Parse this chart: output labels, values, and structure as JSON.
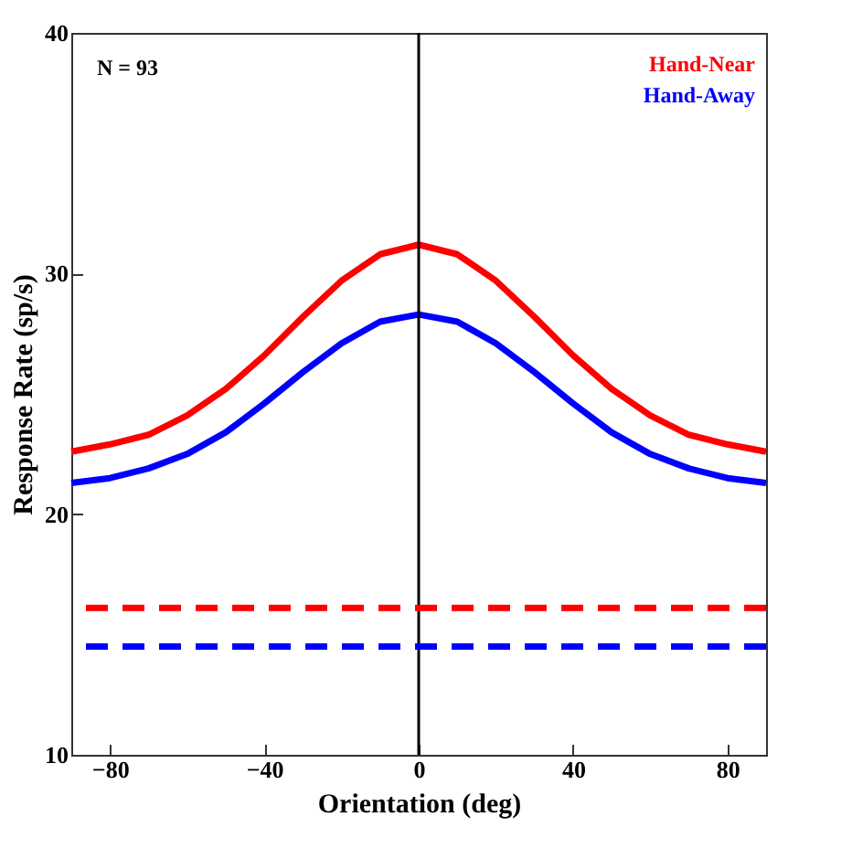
{
  "chart_data": {
    "type": "line",
    "xlabel": "Orientation (deg)",
    "ylabel": "Response Rate (sp/s)",
    "annotations": [
      "N = 93"
    ],
    "x": [
      -90,
      -80,
      -70,
      -60,
      -50,
      -40,
      -30,
      -20,
      -10,
      0,
      10,
      20,
      30,
      40,
      50,
      60,
      70,
      80,
      90
    ],
    "series": [
      {
        "name": "Hand-Near",
        "color": "#ff0000",
        "values": [
          22.6,
          22.9,
          23.3,
          24.1,
          25.2,
          26.6,
          28.2,
          29.7,
          30.8,
          31.2,
          30.8,
          29.7,
          28.2,
          26.6,
          25.2,
          24.1,
          23.3,
          22.9,
          22.6
        ]
      },
      {
        "name": "Hand-Away",
        "color": "#0000ff",
        "values": [
          21.3,
          21.5,
          21.9,
          22.5,
          23.4,
          24.6,
          25.9,
          27.1,
          28.0,
          28.3,
          28.0,
          27.1,
          25.9,
          24.6,
          23.4,
          22.5,
          21.9,
          21.5,
          21.3
        ]
      }
    ],
    "ref_lines": [
      {
        "axis": "x",
        "value": 0,
        "color": "#000000",
        "line_style": "solid"
      },
      {
        "axis": "y",
        "value": 16.1,
        "color": "#ff0000",
        "line_style": "dashed"
      },
      {
        "axis": "y",
        "value": 14.5,
        "color": "#0000ff",
        "line_style": "dashed"
      }
    ],
    "xlim": [
      -90,
      90
    ],
    "xticks": [
      -80,
      -40,
      0,
      40,
      80
    ],
    "ylim": [
      10,
      40
    ],
    "yticks": [
      10,
      20,
      30,
      40
    ],
    "grid": false,
    "legend": "top right",
    "marker": "none",
    "line_style": "solid"
  }
}
